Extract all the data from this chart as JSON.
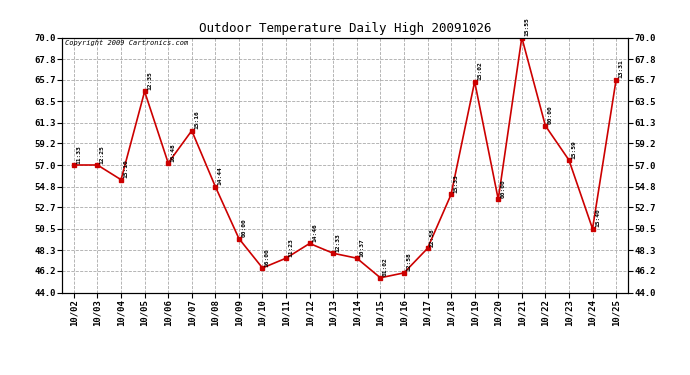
{
  "title": "Outdoor Temperature Daily High 20091026",
  "copyright": "Copyright 2009 Cartronics.com",
  "x_labels": [
    "10/02",
    "10/03",
    "10/04",
    "10/05",
    "10/06",
    "10/07",
    "10/08",
    "10/09",
    "10/10",
    "10/11",
    "10/12",
    "10/13",
    "10/14",
    "10/15",
    "10/16",
    "10/17",
    "10/18",
    "10/19",
    "10/20",
    "10/21",
    "10/22",
    "10/23",
    "10/24",
    "10/25"
  ],
  "y_values": [
    57.0,
    57.0,
    55.5,
    64.5,
    57.2,
    60.5,
    54.8,
    49.5,
    46.5,
    47.5,
    49.0,
    48.0,
    47.5,
    45.5,
    46.0,
    48.5,
    54.0,
    65.5,
    53.5,
    70.0,
    61.0,
    57.5,
    50.5,
    65.7
  ],
  "time_labels": [
    "11:33",
    "12:25",
    "15:10",
    "12:35",
    "16:48",
    "15:16",
    "14:44",
    "00:00",
    "16:00",
    "11:23",
    "14:46",
    "12:33",
    "10:37",
    "01:02",
    "12:58",
    "22:58",
    "15:33",
    "15:02",
    "00:00",
    "15:55",
    "00:00",
    "15:59",
    "15:40",
    "13:31"
  ],
  "line_color": "#cc0000",
  "marker_color": "#cc0000",
  "background_color": "#ffffff",
  "grid_color": "#aaaaaa",
  "ylim": [
    44.0,
    70.0
  ],
  "ytick_labels": [
    "44.0",
    "46.2",
    "48.3",
    "50.5",
    "52.7",
    "54.8",
    "57.0",
    "59.2",
    "61.3",
    "63.5",
    "65.7",
    "67.8",
    "70.0"
  ],
  "ytick_values": [
    44.0,
    46.2,
    48.3,
    50.5,
    52.7,
    54.8,
    57.0,
    59.2,
    61.3,
    63.5,
    65.7,
    67.8,
    70.0
  ]
}
